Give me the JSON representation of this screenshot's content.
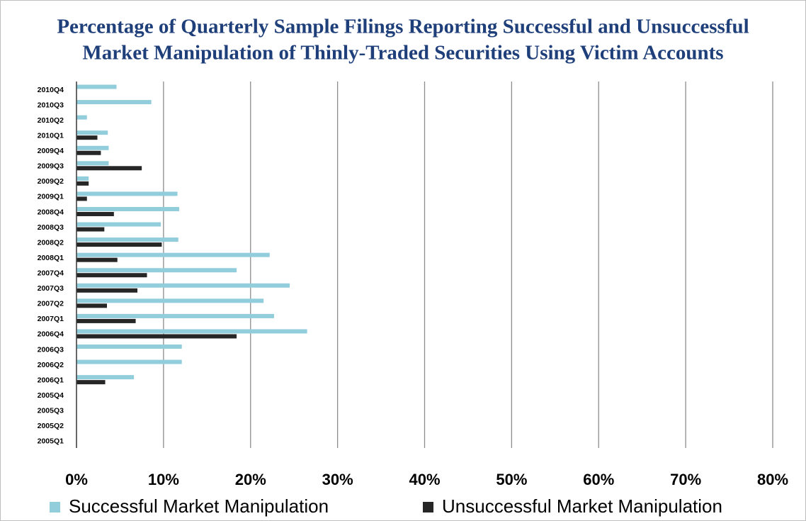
{
  "chart_data": {
    "type": "hbar",
    "title": [
      "Percentage of Quarterly Sample Filings Reporting Successful and Unsuccessful",
      "Market Manipulation of Thinly-Traded Securities Using Victim Accounts"
    ],
    "categories": [
      "2010Q4",
      "2010Q3",
      "2010Q2",
      "2010Q1",
      "2009Q4",
      "2009Q3",
      "2009Q2",
      "2009Q1",
      "2008Q4",
      "2008Q3",
      "2008Q2",
      "2008Q1",
      "2007Q4",
      "2007Q3",
      "2007Q2",
      "2007Q1",
      "2006Q4",
      "2006Q3",
      "2006Q2",
      "2006Q1",
      "2005Q4",
      "2005Q3",
      "2005Q2",
      "2005Q1"
    ],
    "series": [
      {
        "name": "Successful Market Manipulation",
        "color": "#92cddc",
        "values": [
          4.6,
          8.6,
          1.2,
          3.6,
          3.7,
          3.7,
          1.4,
          11.6,
          11.8,
          9.7,
          11.7,
          22.2,
          18.4,
          24.5,
          21.5,
          22.7,
          26.5,
          12.1,
          12.1,
          6.6,
          0,
          0,
          0,
          0
        ]
      },
      {
        "name": "Unsuccessful Market Manipulation",
        "color": "#262626",
        "values": [
          0,
          0,
          0,
          2.4,
          2.8,
          7.5,
          1.4,
          1.2,
          4.3,
          3.2,
          9.8,
          4.7,
          8.1,
          7.0,
          3.5,
          6.8,
          18.4,
          0,
          0,
          3.3,
          0,
          0,
          0,
          0
        ]
      }
    ],
    "xlim": [
      0,
      80
    ],
    "xticks": [
      {
        "value": 0,
        "label": "0%"
      },
      {
        "value": 10,
        "label": "10%"
      },
      {
        "value": 20,
        "label": "20%"
      },
      {
        "value": 30,
        "label": "30%"
      },
      {
        "value": 40,
        "label": "40%"
      },
      {
        "value": 50,
        "label": "50%"
      },
      {
        "value": 60,
        "label": "60%"
      },
      {
        "value": 70,
        "label": "70%"
      },
      {
        "value": 80,
        "label": "80%"
      }
    ],
    "grid": true
  }
}
